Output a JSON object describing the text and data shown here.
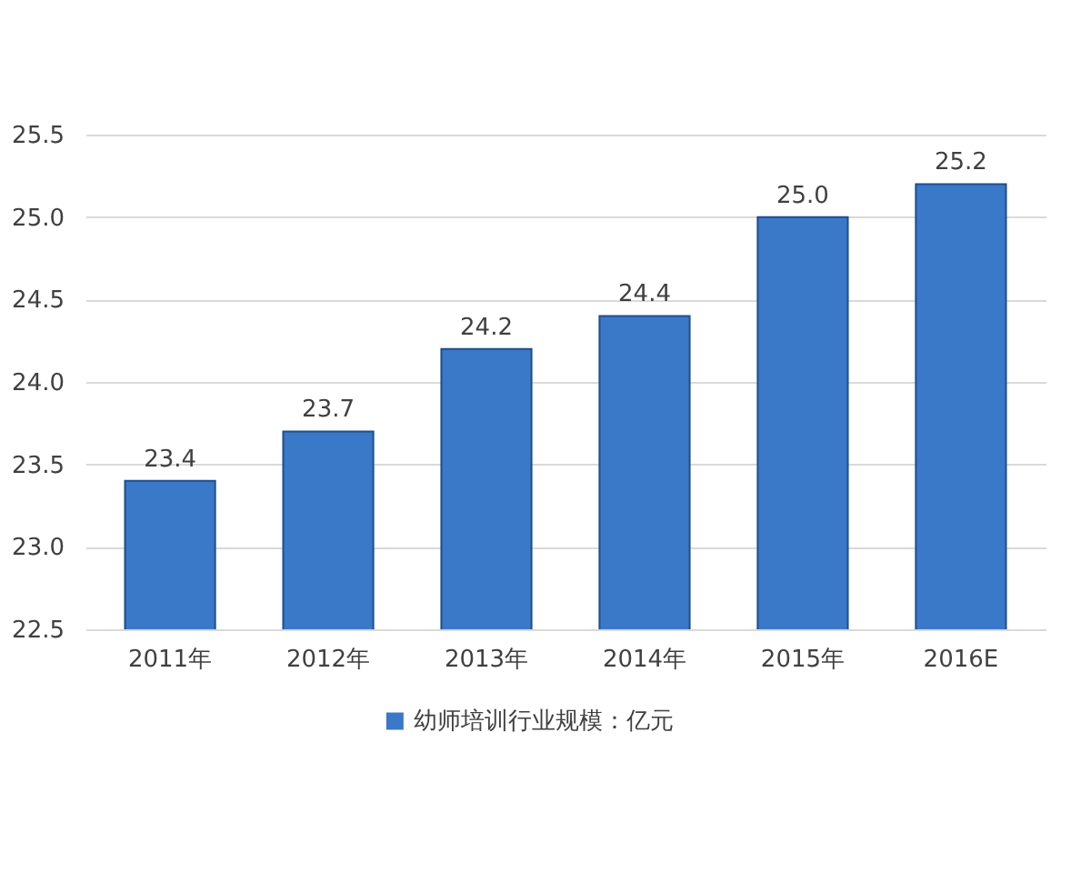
{
  "chart_data": {
    "type": "bar",
    "categories": [
      "2011年",
      "2012年",
      "2013年",
      "2014年",
      "2015年",
      "2016E"
    ],
    "series": [
      {
        "name": "幼师培训行业规模：亿元",
        "color": "#3a78c8",
        "values": [
          23.4,
          23.7,
          24.2,
          24.4,
          25.0,
          25.2
        ],
        "value_labels": [
          "23.4",
          "23.7",
          "24.2",
          "24.4",
          "25.0",
          "25.2"
        ]
      }
    ],
    "ylim": [
      22.5,
      25.5
    ],
    "yticks": [
      22.5,
      {
        "value": 23,
        "label": "23.0"
      },
      23.5,
      {
        "value": 24,
        "label": "24.0"
      },
      24.5,
      {
        "value": 25,
        "label": "25.0"
      },
      25.5
    ],
    "grid": "y",
    "legend": "bottom"
  }
}
